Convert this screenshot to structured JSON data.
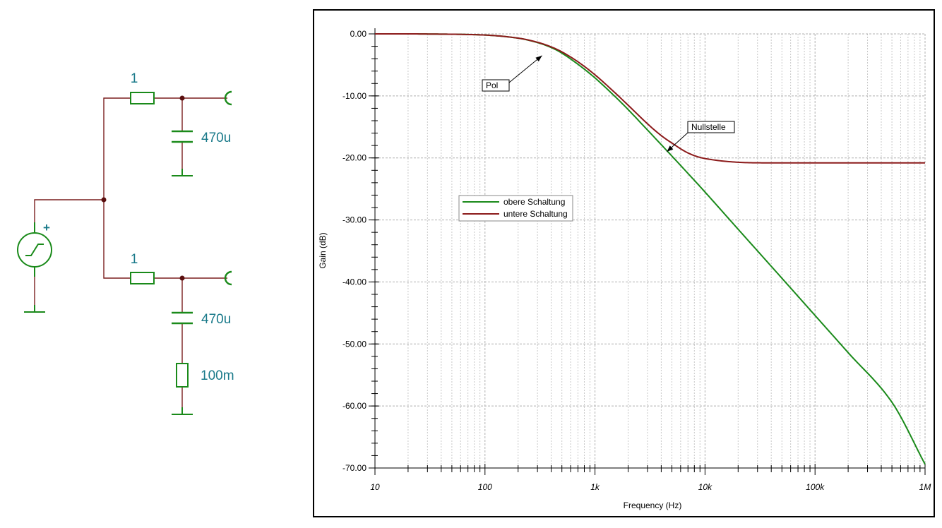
{
  "schematic": {
    "top_branch": {
      "resistor": "1",
      "capacitor": "470u"
    },
    "bottom_branch": {
      "resistor": "1",
      "capacitor": "470u",
      "series_resistor": "100m"
    },
    "source_polarity": "+",
    "wire_color": "#7a1f1f",
    "component_color": "#1a8a1a",
    "label_color": "#1a7a8a"
  },
  "chart_data": {
    "type": "line",
    "xlabel": "Frequency (Hz)",
    "ylabel": "Gain (dB)",
    "x_scale": "log",
    "xlim": [
      10,
      1000000
    ],
    "ylim": [
      -70,
      0
    ],
    "x_ticks": [
      10,
      100,
      1000,
      10000,
      100000,
      1000000
    ],
    "x_tick_labels": [
      "10",
      "100",
      "1k",
      "10k",
      "100k",
      "1M"
    ],
    "y_ticks": [
      0,
      -10,
      -20,
      -30,
      -40,
      -50,
      -60,
      -70
    ],
    "y_tick_labels": [
      "0.00",
      "-10.00",
      "-20.00",
      "-30.00",
      "-40.00",
      "-50.00",
      "-60.00",
      "-70.00"
    ],
    "grid": true,
    "legend_position": "middle-left",
    "series": [
      {
        "name": "obere Schaltung",
        "color": "#1a8a1a",
        "points": [
          [
            10,
            0
          ],
          [
            30,
            -0.02
          ],
          [
            100,
            -0.19
          ],
          [
            200,
            -0.69
          ],
          [
            300,
            -1.4
          ],
          [
            400,
            -2.2
          ],
          [
            500,
            -3.1
          ],
          [
            700,
            -4.9
          ],
          [
            1000,
            -7.1
          ],
          [
            1500,
            -10.0
          ],
          [
            2000,
            -12.2
          ],
          [
            3000,
            -15.5
          ],
          [
            5000,
            -19.7
          ],
          [
            7000,
            -22.5
          ],
          [
            10000,
            -25.5
          ],
          [
            20000,
            -31.5
          ],
          [
            50000,
            -39.4
          ],
          [
            100000,
            -45.4
          ],
          [
            200000,
            -51.4
          ],
          [
            500000,
            -59.4
          ],
          [
            1000000,
            -69.4
          ]
        ]
      },
      {
        "name": "untere Schaltung",
        "color": "#8b1a1a",
        "points": [
          [
            10,
            0
          ],
          [
            30,
            -0.02
          ],
          [
            100,
            -0.19
          ],
          [
            200,
            -0.68
          ],
          [
            300,
            -1.35
          ],
          [
            400,
            -2.1
          ],
          [
            500,
            -2.9
          ],
          [
            700,
            -4.5
          ],
          [
            1000,
            -6.6
          ],
          [
            1500,
            -9.4
          ],
          [
            2000,
            -11.5
          ],
          [
            3000,
            -14.5
          ],
          [
            4000,
            -16.4
          ],
          [
            5000,
            -17.6
          ],
          [
            7000,
            -19.2
          ],
          [
            10000,
            -20.1
          ],
          [
            20000,
            -20.7
          ],
          [
            50000,
            -20.8
          ],
          [
            100000,
            -20.8
          ],
          [
            1000000,
            -20.8
          ]
        ]
      }
    ],
    "annotations": [
      {
        "text": "Pol",
        "x": 330,
        "y": -3.5
      },
      {
        "text": "Nullstelle",
        "x": 4500,
        "y": -19.0
      }
    ]
  }
}
